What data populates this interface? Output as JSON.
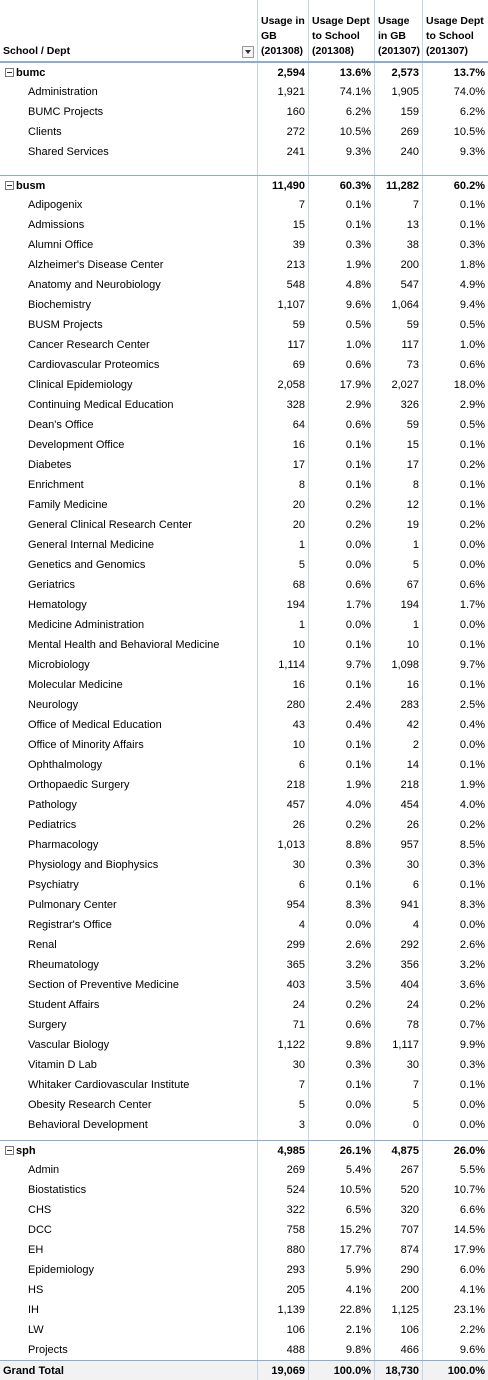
{
  "header": {
    "columns": [
      "School / Dept",
      "Usage in GB (201308)",
      "Usage Dept to School (201308)",
      "Usage in GB (201307)",
      "Usage Dept to School (201307)"
    ]
  },
  "groups": [
    {
      "name": "bumc",
      "values": [
        "2,594",
        "13.6%",
        "2,573",
        "13.7%"
      ],
      "rows": [
        {
          "name": "Administration",
          "values": [
            "1,921",
            "74.1%",
            "1,905",
            "74.0%"
          ]
        },
        {
          "name": "BUMC Projects",
          "values": [
            "160",
            "6.2%",
            "159",
            "6.2%"
          ]
        },
        {
          "name": "Clients",
          "values": [
            "272",
            "10.5%",
            "269",
            "10.5%"
          ]
        },
        {
          "name": "Shared Services",
          "values": [
            "241",
            "9.3%",
            "240",
            "9.3%"
          ]
        }
      ]
    },
    {
      "name": "busm",
      "values": [
        "11,490",
        "60.3%",
        "11,282",
        "60.2%"
      ],
      "rows": [
        {
          "name": "Adipogenix",
          "values": [
            "7",
            "0.1%",
            "7",
            "0.1%"
          ]
        },
        {
          "name": "Admissions",
          "values": [
            "15",
            "0.1%",
            "13",
            "0.1%"
          ]
        },
        {
          "name": "Alumni Office",
          "values": [
            "39",
            "0.3%",
            "38",
            "0.3%"
          ]
        },
        {
          "name": "Alzheimer's Disease Center",
          "values": [
            "213",
            "1.9%",
            "200",
            "1.8%"
          ]
        },
        {
          "name": "Anatomy and Neurobiology",
          "values": [
            "548",
            "4.8%",
            "547",
            "4.9%"
          ]
        },
        {
          "name": "Biochemistry",
          "values": [
            "1,107",
            "9.6%",
            "1,064",
            "9.4%"
          ]
        },
        {
          "name": "BUSM Projects",
          "values": [
            "59",
            "0.5%",
            "59",
            "0.5%"
          ]
        },
        {
          "name": "Cancer Research Center",
          "values": [
            "117",
            "1.0%",
            "117",
            "1.0%"
          ]
        },
        {
          "name": "Cardiovascular Proteomics",
          "values": [
            "69",
            "0.6%",
            "73",
            "0.6%"
          ]
        },
        {
          "name": "Clinical Epidemiology",
          "values": [
            "2,058",
            "17.9%",
            "2,027",
            "18.0%"
          ]
        },
        {
          "name": "Continuing Medical Education",
          "values": [
            "328",
            "2.9%",
            "326",
            "2.9%"
          ]
        },
        {
          "name": "Dean's Office",
          "values": [
            "64",
            "0.6%",
            "59",
            "0.5%"
          ]
        },
        {
          "name": "Development Office",
          "values": [
            "16",
            "0.1%",
            "15",
            "0.1%"
          ]
        },
        {
          "name": "Diabetes",
          "values": [
            "17",
            "0.1%",
            "17",
            "0.2%"
          ]
        },
        {
          "name": "Enrichment",
          "values": [
            "8",
            "0.1%",
            "8",
            "0.1%"
          ]
        },
        {
          "name": "Family Medicine",
          "values": [
            "20",
            "0.2%",
            "12",
            "0.1%"
          ]
        },
        {
          "name": "General Clinical Research Center",
          "values": [
            "20",
            "0.2%",
            "19",
            "0.2%"
          ]
        },
        {
          "name": "General Internal Medicine",
          "values": [
            "1",
            "0.0%",
            "1",
            "0.0%"
          ]
        },
        {
          "name": "Genetics and Genomics",
          "values": [
            "5",
            "0.0%",
            "5",
            "0.0%"
          ]
        },
        {
          "name": "Geriatrics",
          "values": [
            "68",
            "0.6%",
            "67",
            "0.6%"
          ]
        },
        {
          "name": "Hematology",
          "values": [
            "194",
            "1.7%",
            "194",
            "1.7%"
          ]
        },
        {
          "name": "Medicine Administration",
          "values": [
            "1",
            "0.0%",
            "1",
            "0.0%"
          ]
        },
        {
          "name": "Mental Health and Behavioral Medicine",
          "values": [
            "10",
            "0.1%",
            "10",
            "0.1%"
          ]
        },
        {
          "name": "Microbiology",
          "values": [
            "1,114",
            "9.7%",
            "1,098",
            "9.7%"
          ]
        },
        {
          "name": "Molecular Medicine",
          "values": [
            "16",
            "0.1%",
            "16",
            "0.1%"
          ]
        },
        {
          "name": "Neurology",
          "values": [
            "280",
            "2.4%",
            "283",
            "2.5%"
          ]
        },
        {
          "name": "Office of Medical Education",
          "values": [
            "43",
            "0.4%",
            "42",
            "0.4%"
          ]
        },
        {
          "name": "Office of Minority Affairs",
          "values": [
            "10",
            "0.1%",
            "2",
            "0.0%"
          ]
        },
        {
          "name": "Ophthalmology",
          "values": [
            "6",
            "0.1%",
            "14",
            "0.1%"
          ]
        },
        {
          "name": "Orthopaedic Surgery",
          "values": [
            "218",
            "1.9%",
            "218",
            "1.9%"
          ]
        },
        {
          "name": "Pathology",
          "values": [
            "457",
            "4.0%",
            "454",
            "4.0%"
          ]
        },
        {
          "name": "Pediatrics",
          "values": [
            "26",
            "0.2%",
            "26",
            "0.2%"
          ]
        },
        {
          "name": "Pharmacology",
          "values": [
            "1,013",
            "8.8%",
            "957",
            "8.5%"
          ]
        },
        {
          "name": "Physiology and Biophysics",
          "values": [
            "30",
            "0.3%",
            "30",
            "0.3%"
          ]
        },
        {
          "name": "Psychiatry",
          "values": [
            "6",
            "0.1%",
            "6",
            "0.1%"
          ]
        },
        {
          "name": "Pulmonary Center",
          "values": [
            "954",
            "8.3%",
            "941",
            "8.3%"
          ]
        },
        {
          "name": "Registrar's Office",
          "values": [
            "4",
            "0.0%",
            "4",
            "0.0%"
          ]
        },
        {
          "name": "Renal",
          "values": [
            "299",
            "2.6%",
            "292",
            "2.6%"
          ]
        },
        {
          "name": "Rheumatology",
          "values": [
            "365",
            "3.2%",
            "356",
            "3.2%"
          ]
        },
        {
          "name": "Section of Preventive Medicine",
          "values": [
            "403",
            "3.5%",
            "404",
            "3.6%"
          ]
        },
        {
          "name": "Student Affairs",
          "values": [
            "24",
            "0.2%",
            "24",
            "0.2%"
          ]
        },
        {
          "name": "Surgery",
          "values": [
            "71",
            "0.6%",
            "78",
            "0.7%"
          ]
        },
        {
          "name": "Vascular Biology",
          "values": [
            "1,122",
            "9.8%",
            "1,117",
            "9.9%"
          ]
        },
        {
          "name": "Vitamin D Lab",
          "values": [
            "30",
            "0.3%",
            "30",
            "0.3%"
          ]
        },
        {
          "name": "Whitaker Cardiovascular Institute",
          "values": [
            "7",
            "0.1%",
            "7",
            "0.1%"
          ]
        },
        {
          "name": "Obesity Research Center",
          "values": [
            "5",
            "0.0%",
            "5",
            "0.0%"
          ]
        },
        {
          "name": "Behavioral Development",
          "values": [
            "3",
            "0.0%",
            "0",
            "0.0%"
          ]
        }
      ]
    },
    {
      "name": "sph",
      "values": [
        "4,985",
        "26.1%",
        "4,875",
        "26.0%"
      ],
      "rows": [
        {
          "name": "Admin",
          "values": [
            "269",
            "5.4%",
            "267",
            "5.5%"
          ]
        },
        {
          "name": "Biostatistics",
          "values": [
            "524",
            "10.5%",
            "520",
            "10.7%"
          ]
        },
        {
          "name": "CHS",
          "values": [
            "322",
            "6.5%",
            "320",
            "6.6%"
          ]
        },
        {
          "name": "DCC",
          "values": [
            "758",
            "15.2%",
            "707",
            "14.5%"
          ]
        },
        {
          "name": "EH",
          "values": [
            "880",
            "17.7%",
            "874",
            "17.9%"
          ]
        },
        {
          "name": "Epidemiology",
          "values": [
            "293",
            "5.9%",
            "290",
            "6.0%"
          ]
        },
        {
          "name": "HS",
          "values": [
            "205",
            "4.1%",
            "200",
            "4.1%"
          ]
        },
        {
          "name": "IH",
          "values": [
            "1,139",
            "22.8%",
            "1,125",
            "23.1%"
          ]
        },
        {
          "name": "LW",
          "values": [
            "106",
            "2.1%",
            "106",
            "2.2%"
          ]
        },
        {
          "name": "Projects",
          "values": [
            "488",
            "9.8%",
            "466",
            "9.6%"
          ]
        }
      ]
    }
  ],
  "grand_total": {
    "label": "Grand Total",
    "values": [
      "19,069",
      "100.0%",
      "18,730",
      "100.0%"
    ]
  }
}
